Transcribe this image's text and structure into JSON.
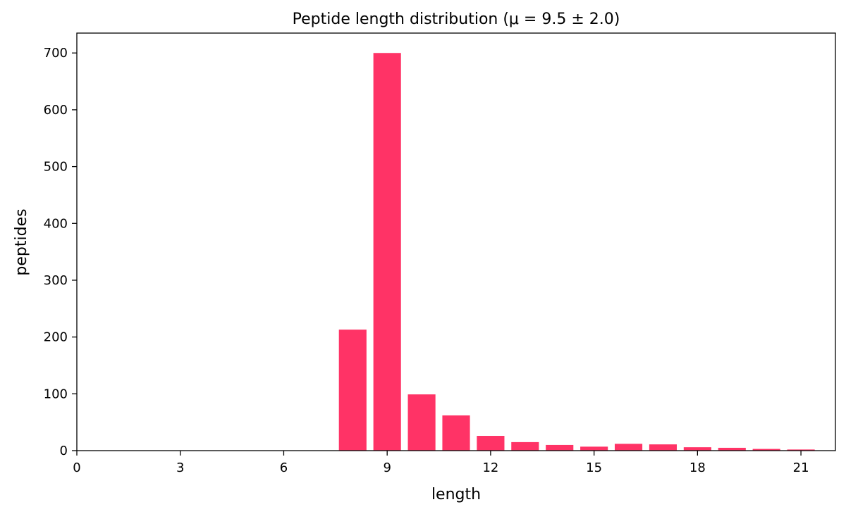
{
  "chart_data": {
    "type": "bar",
    "title": "Peptide length distribution (μ = 9.5 ± 2.0)",
    "xlabel": "length",
    "ylabel": "peptides",
    "xlim": [
      0,
      22
    ],
    "ylim": [
      0,
      735
    ],
    "xticks": [
      0,
      3,
      6,
      9,
      12,
      15,
      18,
      21
    ],
    "yticks": [
      0,
      100,
      200,
      300,
      400,
      500,
      600,
      700
    ],
    "grid": false,
    "bar_color": "#ff3366",
    "x": [
      8,
      9,
      10,
      11,
      12,
      13,
      14,
      15,
      16,
      17,
      18,
      19,
      20,
      21
    ],
    "values": [
      213,
      700,
      99,
      62,
      26,
      15,
      10,
      7,
      12,
      11,
      6,
      5,
      3,
      2
    ]
  }
}
